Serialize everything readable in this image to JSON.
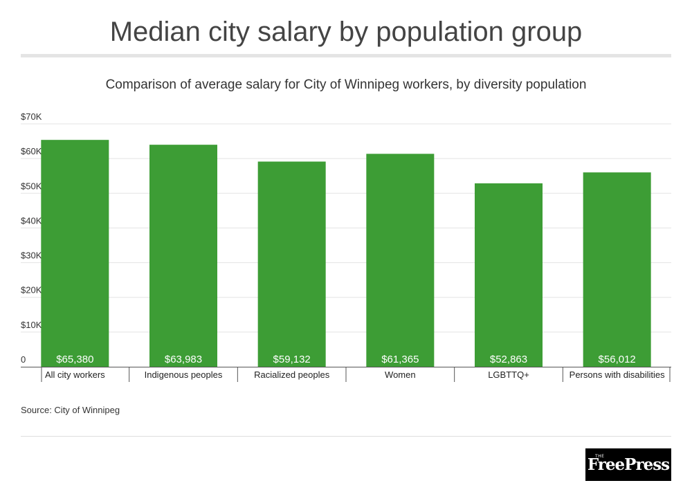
{
  "header": {
    "title": "Median city salary by population group",
    "subtitle": "Comparison of average salary for City of Winnipeg workers, by diversity population"
  },
  "footer": {
    "source": "Source: City of Winnipeg",
    "logo_small": "THE",
    "logo_text": "FreePress"
  },
  "colors": {
    "bar": "#3d9d35",
    "grid": "#e3e3e3",
    "axis": "#555555"
  },
  "chart_data": {
    "type": "bar",
    "categories": [
      "All city workers",
      "Indigenous peoples",
      "Racialized peoples",
      "Women",
      "LGBTTQ+",
      "Persons with disabilities"
    ],
    "values": [
      65380,
      63983,
      59132,
      61365,
      52863,
      56012
    ],
    "data_labels": [
      "$65,380",
      "$63,983",
      "$59,132",
      "$61,365",
      "$52,863",
      "$56,012"
    ],
    "title": "Comparison of average salary for City of Winnipeg workers, by diversity population",
    "xlabel": "",
    "ylabel": "",
    "ylim": [
      0,
      70000
    ],
    "yticks": [
      0,
      10000,
      20000,
      30000,
      40000,
      50000,
      60000,
      70000
    ],
    "ytick_labels": [
      "0",
      "$10K",
      "$20K",
      "$30K",
      "$40K",
      "$50K",
      "$60K",
      "$70K"
    ],
    "grid": true,
    "legend": "none"
  }
}
